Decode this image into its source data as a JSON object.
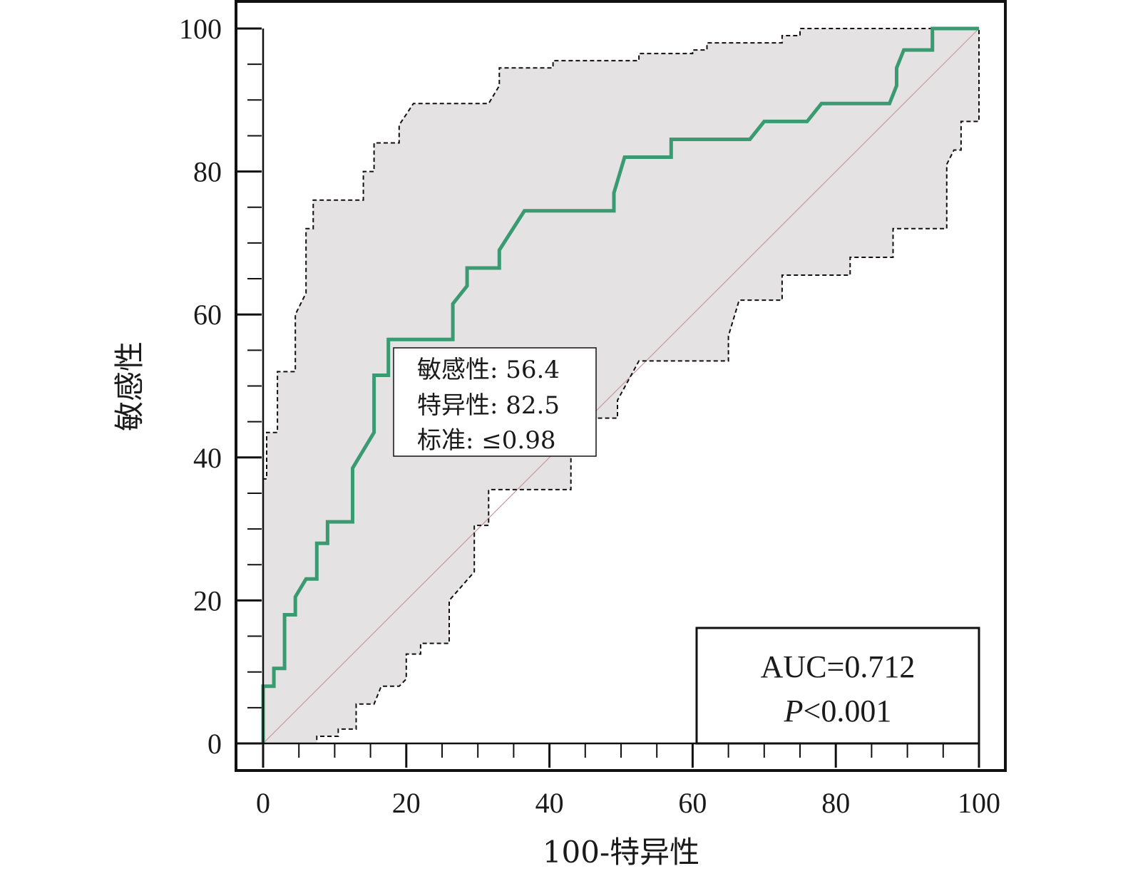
{
  "chart_data": {
    "type": "line",
    "xlabel": "100-特异性",
    "ylabel": "敏感性",
    "xlim": [
      0,
      100
    ],
    "ylim": [
      0,
      100
    ],
    "x_ticks": [
      "0",
      "20",
      "40",
      "60",
      "80",
      "100"
    ],
    "y_ticks": [
      "0",
      "20",
      "40",
      "60",
      "80",
      "100"
    ],
    "grid": false,
    "series": [
      {
        "role": "roc-curve",
        "color": "#3a9a72",
        "points": [
          [
            0,
            0
          ],
          [
            0,
            8
          ],
          [
            1.5,
            8
          ],
          [
            1.5,
            10.5
          ],
          [
            3,
            10.5
          ],
          [
            3,
            18
          ],
          [
            4.5,
            18
          ],
          [
            4.5,
            20.5
          ],
          [
            6,
            23
          ],
          [
            7.5,
            23
          ],
          [
            7.5,
            28
          ],
          [
            9,
            28
          ],
          [
            9,
            31
          ],
          [
            12.5,
            31
          ],
          [
            12.5,
            38.5
          ],
          [
            15.5,
            43.5
          ],
          [
            15.5,
            51.5
          ],
          [
            17.5,
            51.5
          ],
          [
            17.5,
            56.5
          ],
          [
            26.5,
            56.5
          ],
          [
            26.5,
            61.5
          ],
          [
            28.5,
            64
          ],
          [
            28.5,
            66.5
          ],
          [
            33,
            66.5
          ],
          [
            33,
            69
          ],
          [
            36.5,
            74.5
          ],
          [
            49,
            74.5
          ],
          [
            49,
            77
          ],
          [
            50.5,
            82
          ],
          [
            57,
            82
          ],
          [
            57,
            84.5
          ],
          [
            68,
            84.5
          ],
          [
            70,
            87
          ],
          [
            76,
            87
          ],
          [
            78,
            89.5
          ],
          [
            87.5,
            89.5
          ],
          [
            88.5,
            92
          ],
          [
            88.5,
            94.5
          ],
          [
            89.5,
            97
          ],
          [
            93.5,
            97
          ],
          [
            93.5,
            100
          ],
          [
            100,
            100
          ]
        ]
      },
      {
        "role": "ci-upper",
        "color": "#111111",
        "points": [
          [
            0,
            0
          ],
          [
            0,
            37
          ],
          [
            0.5,
            37
          ],
          [
            0.5,
            43.5
          ],
          [
            2,
            43.5
          ],
          [
            2,
            52
          ],
          [
            4.5,
            52
          ],
          [
            4.5,
            60
          ],
          [
            6,
            63
          ],
          [
            6,
            72
          ],
          [
            7,
            72
          ],
          [
            7,
            76
          ],
          [
            14,
            76
          ],
          [
            14,
            80
          ],
          [
            15.5,
            80
          ],
          [
            15.5,
            84
          ],
          [
            19,
            84
          ],
          [
            19,
            86.5
          ],
          [
            21,
            89.5
          ],
          [
            31.5,
            89.5
          ],
          [
            33,
            92
          ],
          [
            33,
            94.5
          ],
          [
            40.5,
            94.5
          ],
          [
            40.5,
            95.5
          ],
          [
            52.5,
            95.5
          ],
          [
            52.5,
            96.5
          ],
          [
            60,
            96.5
          ],
          [
            60,
            97
          ],
          [
            62,
            97
          ],
          [
            62,
            98
          ],
          [
            72.5,
            98
          ],
          [
            72.5,
            99
          ],
          [
            75,
            99
          ],
          [
            75,
            100
          ],
          [
            100,
            100
          ]
        ]
      },
      {
        "role": "ci-lower",
        "color": "#111111",
        "points": [
          [
            0,
            0
          ],
          [
            7.5,
            0
          ],
          [
            7.5,
            1
          ],
          [
            10.5,
            1
          ],
          [
            10.5,
            2
          ],
          [
            13,
            2
          ],
          [
            13,
            5.5
          ],
          [
            15.5,
            5.5
          ],
          [
            16.5,
            8
          ],
          [
            19,
            8
          ],
          [
            20,
            9
          ],
          [
            20,
            12.5
          ],
          [
            22,
            12.5
          ],
          [
            22,
            14
          ],
          [
            26,
            14
          ],
          [
            26,
            20
          ],
          [
            29.5,
            24
          ],
          [
            29.5,
            30.5
          ],
          [
            31.5,
            30.5
          ],
          [
            31.5,
            35.5
          ],
          [
            43,
            35.5
          ],
          [
            43,
            45.5
          ],
          [
            49.5,
            45.5
          ],
          [
            49.5,
            48
          ],
          [
            52.5,
            53.5
          ],
          [
            65,
            53.5
          ],
          [
            65,
            57
          ],
          [
            66.5,
            62
          ],
          [
            72.5,
            62
          ],
          [
            72.5,
            65.5
          ],
          [
            82,
            65.5
          ],
          [
            82,
            68
          ],
          [
            88,
            68
          ],
          [
            88,
            72
          ],
          [
            95.5,
            72
          ],
          [
            95.5,
            81
          ],
          [
            96.5,
            83
          ],
          [
            97.5,
            83
          ],
          [
            97.5,
            87
          ],
          [
            100,
            87
          ],
          [
            100,
            100
          ]
        ]
      },
      {
        "role": "reference-diagonal",
        "color": "#c89aa2",
        "points": [
          [
            0,
            0
          ],
          [
            100,
            100
          ]
        ]
      }
    ],
    "band_fill": "#e4e2e2",
    "annotation": {
      "lines": [
        "敏感性: 56.4",
        "特异性: 82.5",
        "标准: ≤0.98"
      ],
      "point": [
        17.5,
        56.4
      ]
    },
    "stats": {
      "auc": "AUC=0.712",
      "p_symbol": "P",
      "p_rest": "<0.001"
    }
  }
}
